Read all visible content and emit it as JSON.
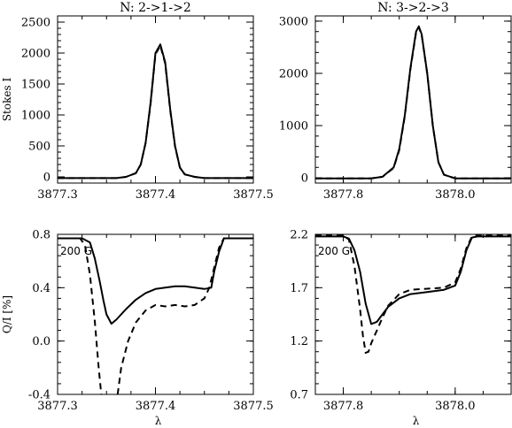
{
  "chart_data": [
    {
      "type": "line",
      "title": "N: 2->1->2",
      "ylabel": "Stokes I",
      "xlabel": "",
      "xlim": [
        3877.3,
        3877.5
      ],
      "ylim": [
        -100,
        2600
      ],
      "xticks": [
        3877.3,
        3877.4,
        3877.5
      ],
      "xtick_labels": [
        "3877.3",
        "3877.4",
        "3877.5"
      ],
      "yticks": [
        0,
        500,
        1000,
        1500,
        2000,
        2500
      ],
      "ytick_labels": [
        "0",
        "500",
        "1000",
        "1500",
        "2000",
        "2500"
      ],
      "annotation": "",
      "series": [
        {
          "style": "solid",
          "x": [
            3877.3,
            3877.36,
            3877.37,
            3877.38,
            3877.385,
            3877.39,
            3877.395,
            3877.4,
            3877.405,
            3877.41,
            3877.415,
            3877.42,
            3877.425,
            3877.43,
            3877.44,
            3877.45,
            3877.5
          ],
          "y": [
            -20,
            -20,
            0,
            60,
            200,
            550,
            1200,
            2000,
            2140,
            1850,
            1100,
            500,
            150,
            40,
            0,
            -20,
            -20
          ]
        },
        {
          "style": "dashed",
          "x": [
            3877.3,
            3877.36,
            3877.37,
            3877.38,
            3877.385,
            3877.39,
            3877.395,
            3877.4,
            3877.405,
            3877.41,
            3877.415,
            3877.42,
            3877.425,
            3877.43,
            3877.44,
            3877.45,
            3877.5
          ],
          "y": [
            -20,
            -20,
            0,
            60,
            200,
            550,
            1180,
            1980,
            2120,
            1830,
            1080,
            490,
            150,
            40,
            0,
            -20,
            -20
          ]
        }
      ]
    },
    {
      "type": "line",
      "title": "N: 3->2->3",
      "ylabel": "",
      "xlabel": "",
      "xlim": [
        3877.75,
        3878.1
      ],
      "ylim": [
        -100,
        3100
      ],
      "xticks": [
        3877.8,
        3878.0
      ],
      "xtick_labels": [
        "3877.8",
        "3878.0"
      ],
      "yticks": [
        0,
        1000,
        2000,
        3000
      ],
      "ytick_labels": [
        "0",
        "1000",
        "2000",
        "3000"
      ],
      "annotation": "",
      "series": [
        {
          "style": "solid",
          "x": [
            3877.75,
            3877.85,
            3877.87,
            3877.89,
            3877.9,
            3877.91,
            3877.92,
            3877.93,
            3877.935,
            3877.94,
            3877.95,
            3877.96,
            3877.97,
            3877.98,
            3878.0,
            3878.02,
            3878.1
          ],
          "y": [
            -10,
            -10,
            20,
            200,
            550,
            1200,
            2100,
            2800,
            2900,
            2750,
            2000,
            1000,
            300,
            60,
            -10,
            -10,
            -10
          ]
        },
        {
          "style": "dashed",
          "x": [
            3877.75,
            3877.85,
            3877.87,
            3877.89,
            3877.9,
            3877.91,
            3877.92,
            3877.93,
            3877.935,
            3877.94,
            3877.95,
            3877.96,
            3877.97,
            3877.98,
            3878.0,
            3878.02,
            3878.1
          ],
          "y": [
            -10,
            -10,
            20,
            190,
            530,
            1180,
            2080,
            2780,
            2880,
            2740,
            2000,
            1000,
            300,
            60,
            -10,
            -10,
            -10
          ]
        }
      ]
    },
    {
      "type": "line",
      "title": "",
      "ylabel": "Q/I [%]",
      "xlabel": "λ",
      "xlim": [
        3877.3,
        3877.5
      ],
      "ylim": [
        -0.4,
        0.8
      ],
      "xticks": [
        3877.3,
        3877.4,
        3877.5
      ],
      "xtick_labels": [
        "3877.3",
        "3877.4",
        "3877.5"
      ],
      "yticks": [
        -0.4,
        0.0,
        0.4,
        0.8
      ],
      "ytick_labels": [
        "-0.4",
        "0.0",
        "0.4",
        "0.8"
      ],
      "annotation": "200 G",
      "series": [
        {
          "style": "solid",
          "x": [
            3877.3,
            3877.325,
            3877.333,
            3877.338,
            3877.343,
            3877.347,
            3877.35,
            3877.355,
            3877.36,
            3877.37,
            3877.38,
            3877.39,
            3877.4,
            3877.41,
            3877.42,
            3877.43,
            3877.44,
            3877.45,
            3877.457,
            3877.46,
            3877.465,
            3877.47,
            3877.5
          ],
          "y": [
            0.77,
            0.77,
            0.74,
            0.62,
            0.45,
            0.3,
            0.2,
            0.13,
            0.16,
            0.24,
            0.31,
            0.36,
            0.39,
            0.4,
            0.41,
            0.41,
            0.4,
            0.39,
            0.4,
            0.52,
            0.67,
            0.77,
            0.77
          ]
        },
        {
          "style": "dashed",
          "x": [
            3877.3,
            3877.323,
            3877.328,
            3877.333,
            3877.338,
            3877.342,
            3877.344,
            3877.3446
          ],
          "y": [
            0.77,
            0.77,
            0.72,
            0.5,
            0.15,
            -0.2,
            -0.35,
            -0.4
          ]
        },
        {
          "style": "dashed",
          "x": [
            3877.3614,
            3877.365,
            3877.372,
            3877.38,
            3877.39,
            3877.4,
            3877.41,
            3877.42,
            3877.43,
            3877.44,
            3877.45,
            3877.455,
            3877.46,
            3877.465,
            3877.47,
            3877.5
          ],
          "y": [
            -0.4,
            -0.2,
            0.0,
            0.14,
            0.23,
            0.27,
            0.26,
            0.27,
            0.26,
            0.27,
            0.32,
            0.4,
            0.55,
            0.7,
            0.77,
            0.77
          ]
        }
      ]
    },
    {
      "type": "line",
      "title": "",
      "ylabel": "",
      "xlabel": "λ",
      "xlim": [
        3877.75,
        3878.1
      ],
      "ylim": [
        0.7,
        2.2
      ],
      "xticks": [
        3877.8,
        3878.0
      ],
      "xtick_labels": [
        "3877.8",
        "3878.0"
      ],
      "yticks": [
        0.7,
        1.2,
        1.7,
        2.2
      ],
      "ytick_labels": [
        "0.7",
        "1.2",
        "1.7",
        "2.2"
      ],
      "annotation": "200 G",
      "series": [
        {
          "style": "solid",
          "x": [
            3877.75,
            3877.8,
            3877.81,
            3877.82,
            3877.83,
            3877.84,
            3877.85,
            3877.86,
            3877.87,
            3877.88,
            3877.9,
            3877.92,
            3877.95,
            3877.98,
            3878.0,
            3878.01,
            3878.02,
            3878.03,
            3878.04,
            3878.1
          ],
          "y": [
            2.18,
            2.18,
            2.16,
            2.05,
            1.85,
            1.55,
            1.36,
            1.38,
            1.45,
            1.52,
            1.6,
            1.64,
            1.66,
            1.68,
            1.72,
            1.85,
            2.05,
            2.17,
            2.18,
            2.18
          ]
        },
        {
          "style": "dashed",
          "x": [
            3877.75,
            3877.8,
            3877.81,
            3877.82,
            3877.83,
            3877.835,
            3877.84,
            3877.845,
            3877.85,
            3877.86,
            3877.87,
            3877.88,
            3877.9,
            3877.92,
            3877.95,
            3877.98,
            3878.0,
            3878.01,
            3878.02,
            3878.03,
            3878.04,
            3878.1
          ],
          "y": [
            2.19,
            2.19,
            2.15,
            1.9,
            1.5,
            1.25,
            1.09,
            1.1,
            1.18,
            1.3,
            1.42,
            1.53,
            1.64,
            1.68,
            1.69,
            1.7,
            1.75,
            1.88,
            2.07,
            2.18,
            2.19,
            2.19
          ]
        }
      ]
    }
  ]
}
